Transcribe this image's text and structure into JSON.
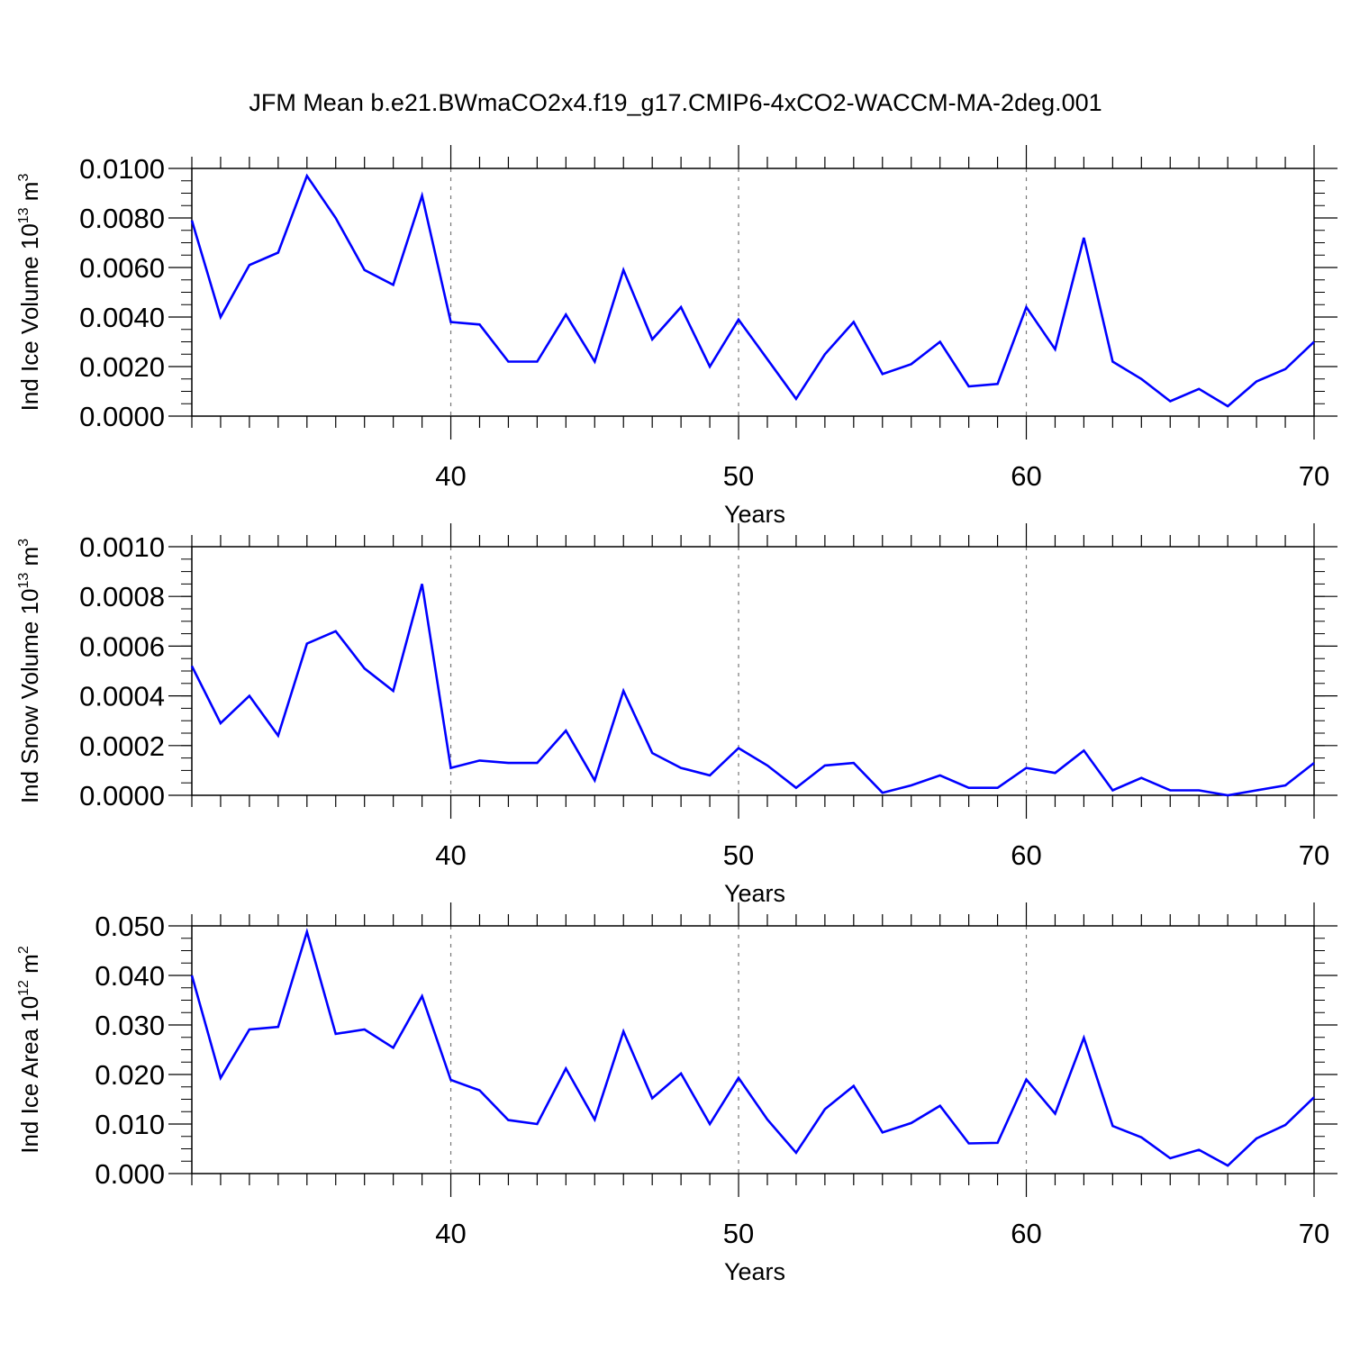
{
  "title": "JFM Mean b.e21.BWmaCO2x4.f19_g17.CMIP6-4xCO2-WACCM-MA-2deg.001",
  "colors": {
    "line": "#0000ff",
    "axis": "#000000",
    "grid": "#777777",
    "background": "#ffffff"
  },
  "chart_data": [
    {
      "type": "line",
      "xlabel": "Years",
      "ylabel": {
        "base": "Ind Ice Volume 10",
        "exp": "13",
        "unit": " m",
        "unit_exp": "3"
      },
      "xlim": [
        31,
        70
      ],
      "ylim": [
        0,
        0.01
      ],
      "x_ticks": [
        "40",
        "50",
        "60",
        "70"
      ],
      "x_tick_values": [
        40,
        50,
        60,
        70
      ],
      "y_ticks": [
        "0.0000",
        "0.0020",
        "0.0040",
        "0.0060",
        "0.0080",
        "0.0100"
      ],
      "y_tick_values": [
        0,
        0.002,
        0.004,
        0.006,
        0.008,
        0.01
      ],
      "y_minor_step": 0.0005,
      "grid": "vertical dashed at major x ticks",
      "x": [
        31,
        32,
        33,
        34,
        35,
        36,
        37,
        38,
        39,
        40,
        41,
        42,
        43,
        44,
        45,
        46,
        47,
        48,
        49,
        50,
        51,
        52,
        53,
        54,
        55,
        56,
        57,
        58,
        59,
        60,
        61,
        62,
        63,
        64,
        65,
        66,
        67,
        68,
        69,
        70
      ],
      "values": [
        0.0079,
        0.004,
        0.0061,
        0.0066,
        0.0097,
        0.008,
        0.0059,
        0.0053,
        0.0089,
        0.0038,
        0.0037,
        0.0022,
        0.0022,
        0.0041,
        0.0022,
        0.0059,
        0.0031,
        0.0044,
        0.002,
        0.0039,
        0.0023,
        0.0007,
        0.0025,
        0.0038,
        0.0017,
        0.0021,
        0.003,
        0.0012,
        0.0013,
        0.0044,
        0.0027,
        0.0072,
        0.0022,
        0.0015,
        0.0006,
        0.0011,
        0.0004,
        0.0014,
        0.0019,
        0.003
      ]
    },
    {
      "type": "line",
      "xlabel": "Years",
      "ylabel": {
        "base": "Ind Snow Volume 10",
        "exp": "13",
        "unit": " m",
        "unit_exp": "3"
      },
      "xlim": [
        31,
        70
      ],
      "ylim": [
        0,
        0.001
      ],
      "x_ticks": [
        "40",
        "50",
        "60",
        "70"
      ],
      "x_tick_values": [
        40,
        50,
        60,
        70
      ],
      "y_ticks": [
        "0.0000",
        "0.0002",
        "0.0004",
        "0.0006",
        "0.0008",
        "0.0010"
      ],
      "y_tick_values": [
        0,
        0.0002,
        0.0004,
        0.0006,
        0.0008,
        0.001
      ],
      "y_minor_step": 5e-05,
      "grid": "vertical dashed at major x ticks",
      "x": [
        31,
        32,
        33,
        34,
        35,
        36,
        37,
        38,
        39,
        40,
        41,
        42,
        43,
        44,
        45,
        46,
        47,
        48,
        49,
        50,
        51,
        52,
        53,
        54,
        55,
        56,
        57,
        58,
        59,
        60,
        61,
        62,
        63,
        64,
        65,
        66,
        67,
        68,
        69,
        70
      ],
      "values": [
        0.00052,
        0.00029,
        0.0004,
        0.00024,
        0.00061,
        0.00066,
        0.00051,
        0.00042,
        0.00085,
        0.00011,
        0.00014,
        0.00013,
        0.00013,
        0.00026,
        6e-05,
        0.00042,
        0.00017,
        0.00011,
        8e-05,
        0.00019,
        0.00012,
        3e-05,
        0.00012,
        0.00013,
        1e-05,
        4e-05,
        8e-05,
        3e-05,
        3e-05,
        0.00011,
        9e-05,
        0.00018,
        2e-05,
        7e-05,
        2e-05,
        2e-05,
        0.0,
        2e-05,
        4e-05,
        0.00013
      ]
    },
    {
      "type": "line",
      "xlabel": "Years",
      "ylabel": {
        "base": "Ind Ice Area 10",
        "exp": "12",
        "unit": " m",
        "unit_exp": "2"
      },
      "xlim": [
        31,
        70
      ],
      "ylim": [
        0,
        0.05
      ],
      "x_ticks": [
        "40",
        "50",
        "60",
        "70"
      ],
      "x_tick_values": [
        40,
        50,
        60,
        70
      ],
      "y_ticks": [
        "0.000",
        "0.010",
        "0.020",
        "0.030",
        "0.040",
        "0.050"
      ],
      "y_tick_values": [
        0,
        0.01,
        0.02,
        0.03,
        0.04,
        0.05
      ],
      "y_minor_step": 0.0025,
      "grid": "vertical dashed at major x ticks",
      "x": [
        31,
        32,
        33,
        34,
        35,
        36,
        37,
        38,
        39,
        40,
        41,
        42,
        43,
        44,
        45,
        46,
        47,
        48,
        49,
        50,
        51,
        52,
        53,
        54,
        55,
        56,
        57,
        58,
        59,
        60,
        61,
        62,
        63,
        64,
        65,
        66,
        67,
        68,
        69,
        70
      ],
      "values": [
        0.04,
        0.0193,
        0.0291,
        0.0296,
        0.0488,
        0.0282,
        0.0291,
        0.0254,
        0.0358,
        0.0189,
        0.0168,
        0.0108,
        0.01,
        0.0212,
        0.0109,
        0.0287,
        0.0152,
        0.0202,
        0.01,
        0.0193,
        0.0109,
        0.0042,
        0.013,
        0.0177,
        0.0083,
        0.0102,
        0.0137,
        0.0061,
        0.0062,
        0.019,
        0.0121,
        0.0274,
        0.0096,
        0.0073,
        0.0031,
        0.0048,
        0.0016,
        0.0071,
        0.0098,
        0.0154
      ]
    }
  ]
}
